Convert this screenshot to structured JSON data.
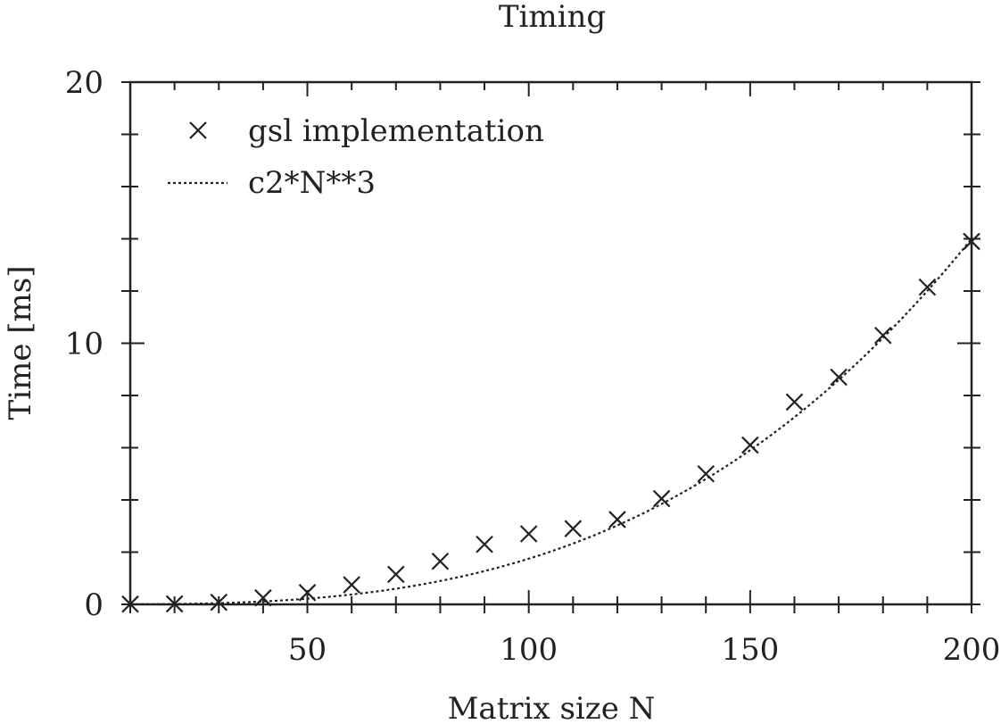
{
  "chart_data": {
    "type": "scatter",
    "title": "Timing",
    "xlabel": "Matrix size N",
    "ylabel": "Time [ms]",
    "xlim": [
      10,
      200
    ],
    "ylim": [
      0,
      20
    ],
    "x_ticks": [
      50,
      100,
      150,
      200
    ],
    "y_ticks": [
      0,
      10,
      20
    ],
    "x_minor_step": 10,
    "y_minor_step": 2,
    "grid": false,
    "legend_position": "top-left",
    "colors": {
      "ink": "#222222"
    },
    "series": [
      {
        "name": "gsl implementation",
        "kind": "points",
        "marker": "x-icon",
        "x": [
          10,
          20,
          30,
          40,
          50,
          60,
          70,
          80,
          90,
          100,
          110,
          120,
          130,
          140,
          150,
          160,
          170,
          180,
          190,
          200
        ],
        "y": [
          0.01,
          0.02,
          0.08,
          0.25,
          0.45,
          0.75,
          1.15,
          1.65,
          2.3,
          2.7,
          2.9,
          3.25,
          4.05,
          5.0,
          6.1,
          7.75,
          8.7,
          10.3,
          12.15,
          13.9
        ]
      },
      {
        "name": "c2*N**3",
        "kind": "curve",
        "style": "dotted",
        "coefficient": 1.75e-06,
        "exponent": 3
      }
    ]
  }
}
